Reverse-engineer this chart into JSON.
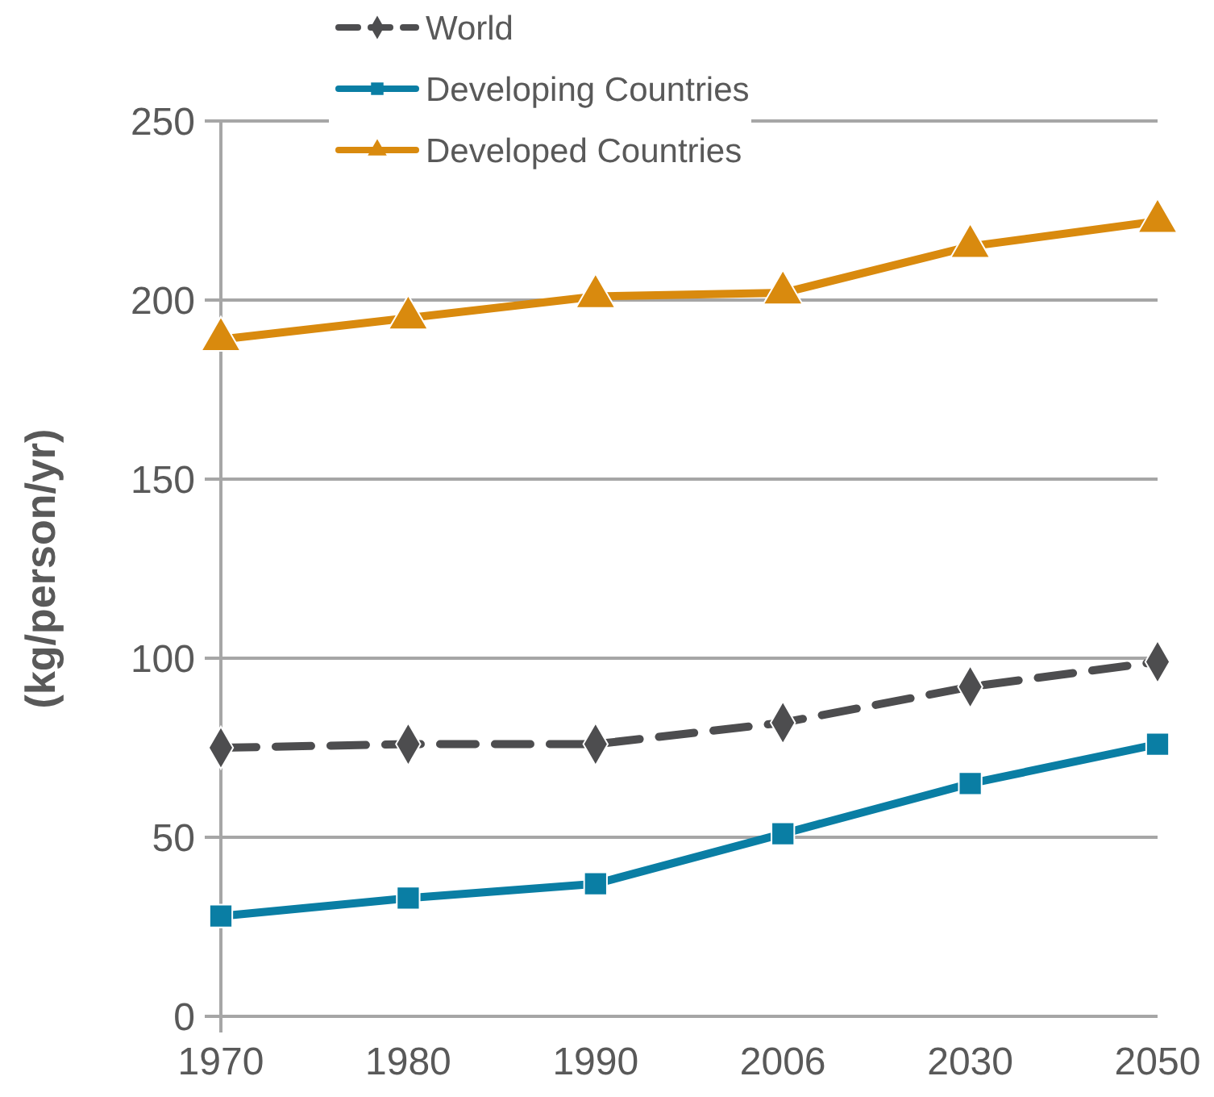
{
  "chart_data": {
    "type": "line",
    "ylabel": "(kg/person/yr)",
    "categories": [
      "1970",
      "1980",
      "1990",
      "2006",
      "2030",
      "2050"
    ],
    "ylim": [
      0,
      250
    ],
    "yticks": [
      0,
      50,
      100,
      150,
      200,
      250
    ],
    "grid": "y",
    "legend": "top left",
    "series": [
      {
        "name": "World",
        "color": "#4d4d4f",
        "marker": "diamond",
        "line_style": "dashed",
        "values": [
          75,
          76,
          76,
          82,
          92,
          99
        ]
      },
      {
        "name": "Developing Countries",
        "color": "#0a7ea4",
        "marker": "square",
        "line_style": "solid",
        "values": [
          28,
          33,
          37,
          51,
          65,
          76
        ]
      },
      {
        "name": "Developed Countries",
        "color": "#d98a0e",
        "marker": "triangle",
        "line_style": "solid",
        "values": [
          189,
          195,
          201,
          202,
          215,
          222
        ]
      }
    ]
  }
}
